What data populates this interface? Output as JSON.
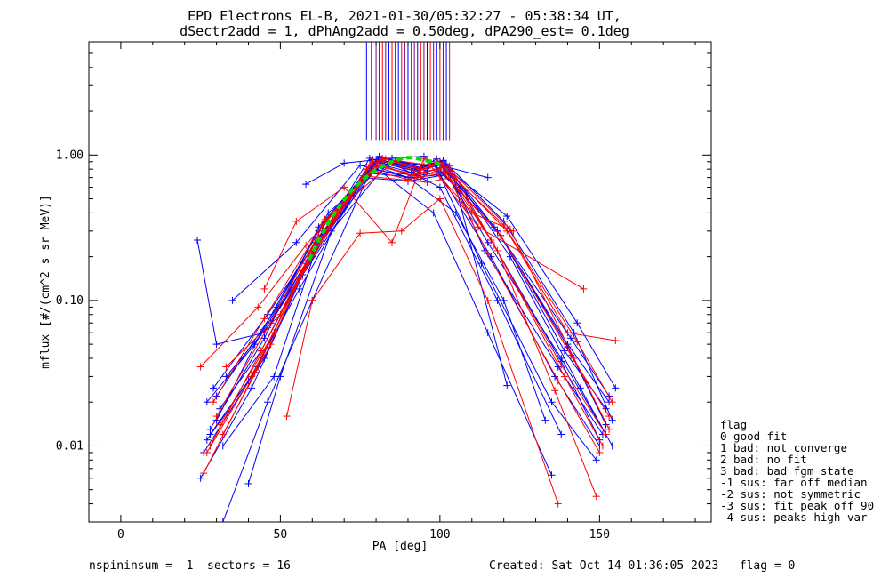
{
  "chart_data": {
    "type": "line",
    "title_line1": "EPD Electrons EL-B, 2021-01-30/05:32:27 - 05:38:34 UT,",
    "title_line2": "dSectr2add = 1, dPhAng2add = 0.50deg, dPA290_est=   0.1deg",
    "xlabel": "PA [deg]",
    "ylabel": "mflux [#/(cm^2 s sr MeV)]",
    "xlim": [
      -10,
      185
    ],
    "ylim": [
      0.003,
      6.0
    ],
    "yscale": "log",
    "x_ticks": [
      0,
      50,
      100,
      150
    ],
    "x_tick_labels": [
      "0",
      "50",
      "100",
      "150"
    ],
    "y_ticks": [
      0.01,
      0.1,
      1.0
    ],
    "y_tick_labels": [
      "0.01",
      "0.10",
      "1.00"
    ],
    "grid": false,
    "legend_position": "right",
    "series": [
      {
        "color": "#0000ff",
        "marker": "+",
        "curves": [
          {
            "x": [
              28,
              45,
              60,
              78,
              92,
              100,
              115,
              138,
              152
            ],
            "y": [
              0.012,
              0.04,
              0.22,
              0.95,
              0.8,
              0.9,
              0.25,
              0.04,
              0.012
            ]
          },
          {
            "x": [
              30,
              44,
              62,
              80,
              95,
              102,
              118,
              140,
              153
            ],
            "y": [
              0.015,
              0.06,
              0.3,
              0.9,
              0.75,
              0.85,
              0.3,
              0.05,
              0.02
            ]
          },
          {
            "x": [
              27,
              42,
              58,
              79,
              90,
              99,
              116,
              136,
              150
            ],
            "y": [
              0.02,
              0.05,
              0.18,
              0.85,
              0.7,
              0.8,
              0.2,
              0.03,
              0.01
            ]
          },
          {
            "x": [
              32,
              48,
              64,
              81,
              94,
              101,
              120,
              142,
              154
            ],
            "y": [
              0.01,
              0.03,
              0.35,
              0.98,
              0.82,
              0.92,
              0.35,
              0.06,
              0.015
            ]
          },
          {
            "x": [
              29,
              46,
              61,
              77,
              93,
              103,
              114,
              137,
              151
            ],
            "y": [
              0.025,
              0.08,
              0.25,
              0.8,
              0.72,
              0.78,
              0.22,
              0.035,
              0.012
            ]
          },
          {
            "x": [
              26,
              43,
              59,
              82,
              96,
              98,
              119,
              139,
              152
            ],
            "y": [
              0.009,
              0.035,
              0.2,
              0.92,
              0.78,
              0.88,
              0.28,
              0.045,
              0.018
            ]
          },
          {
            "x": [
              33,
              47,
              63,
              80,
              91,
              100,
              117,
              141,
              153
            ],
            "y": [
              0.03,
              0.07,
              0.28,
              0.88,
              0.76,
              0.86,
              0.32,
              0.055,
              0.022
            ]
          },
          {
            "x": [
              25,
              41,
              57,
              78,
              92,
              104,
              121,
              143,
              155
            ],
            "y": [
              0.006,
              0.025,
              0.15,
              0.75,
              0.7,
              0.75,
              0.38,
              0.07,
              0.025
            ]
          },
          {
            "x": [
              31,
              44,
              60,
              79,
              94,
              101,
              116,
              138,
              150
            ],
            "y": [
              0.018,
              0.045,
              0.21,
              0.93,
              0.81,
              0.91,
              0.26,
              0.038,
              0.011
            ]
          },
          {
            "x": [
              28,
              45,
              62,
              81,
              95,
              99,
              118,
              140,
              152
            ],
            "y": [
              0.013,
              0.055,
              0.32,
              0.96,
              0.84,
              0.94,
              0.3,
              0.048,
              0.014
            ]
          },
          {
            "x": [
              30,
              49,
              65,
              83,
              93,
              102,
              122,
              144,
              154
            ],
            "y": [
              0.022,
              0.09,
              0.4,
              0.9,
              0.79,
              0.87,
              0.2,
              0.025,
              0.01
            ]
          },
          {
            "x": [
              27,
              40,
              56,
              76,
              90,
              100,
              113,
              135,
              149
            ],
            "y": [
              0.011,
              0.028,
              0.12,
              0.7,
              0.66,
              0.72,
              0.18,
              0.02,
              0.008
            ]
          },
          {
            "x": [
              24,
              30,
              45,
              60,
              80,
              100,
              115
            ],
            "y": [
              0.26,
              0.05,
              0.06,
              0.2,
              0.9,
              0.85,
              0.7
            ]
          },
          {
            "x": [
              35,
              55,
              75,
              90,
              105,
              120,
              133
            ],
            "y": [
              0.1,
              0.25,
              0.85,
              0.7,
              0.4,
              0.1,
              0.015
            ]
          },
          {
            "x": [
              58,
              70,
              85,
              95,
              105,
              121
            ],
            "y": [
              0.63,
              0.88,
              0.95,
              0.98,
              0.6,
              0.026
            ]
          },
          {
            "x": [
              40,
              50,
              66,
              84,
              100,
              118,
              138
            ],
            "y": [
              0.0055,
              0.03,
              0.3,
              0.9,
              0.6,
              0.1,
              0.012
            ]
          },
          {
            "x": [
              32,
              46,
              60,
              79,
              98,
              115,
              135
            ],
            "y": [
              0.003,
              0.02,
              0.1,
              0.85,
              0.4,
              0.06,
              0.0063
            ]
          }
        ]
      },
      {
        "color": "#ff0000",
        "marker": "+",
        "curves": [
          {
            "x": [
              28,
              44,
              59,
              79,
              91,
              101,
              117,
              139,
              151
            ],
            "y": [
              0.01,
              0.045,
              0.2,
              0.9,
              0.72,
              0.82,
              0.24,
              0.03,
              0.01
            ]
          },
          {
            "x": [
              30,
              46,
              61,
              80,
              94,
              100,
              119,
              141,
              153
            ],
            "y": [
              0.016,
              0.065,
              0.26,
              0.85,
              0.7,
              0.8,
              0.28,
              0.042,
              0.016
            ]
          },
          {
            "x": [
              26,
              42,
              57,
              77,
              90,
              102,
              115,
              137,
              150
            ],
            "y": [
              0.0065,
              0.032,
              0.16,
              0.8,
              0.68,
              0.76,
              0.21,
              0.028,
              0.009
            ]
          },
          {
            "x": [
              29,
              45,
              63,
              82,
              95,
              99,
              120,
              143,
              154
            ],
            "y": [
              0.02,
              0.075,
              0.33,
              0.95,
              0.8,
              0.9,
              0.33,
              0.052,
              0.02
            ]
          },
          {
            "x": [
              32,
              47,
              60,
              78,
              92,
              103,
              116,
              138,
              152
            ],
            "y": [
              0.012,
              0.05,
              0.22,
              0.86,
              0.74,
              0.84,
              0.26,
              0.036,
              0.012
            ]
          },
          {
            "x": [
              25,
              43,
              58,
              81,
              93,
              100,
              121,
              140,
              155
            ],
            "y": [
              0.035,
              0.09,
              0.24,
              0.92,
              0.77,
              0.89,
              0.3,
              0.06,
              0.053
            ]
          },
          {
            "x": [
              27,
              41,
              56,
              76,
              96,
              104,
              118,
              136,
              149
            ],
            "y": [
              0.009,
              0.03,
              0.14,
              0.72,
              0.65,
              0.7,
              0.22,
              0.024,
              0.0045
            ]
          },
          {
            "x": [
              31,
              48,
              64,
              83,
              94,
              101,
              122,
              142,
              153
            ],
            "y": [
              0.014,
              0.06,
              0.36,
              0.94,
              0.79,
              0.88,
              0.31,
              0.04,
              0.013
            ]
          },
          {
            "x": [
              52,
              60,
              75,
              88,
              100,
              115,
              137
            ],
            "y": [
              0.016,
              0.1,
              0.29,
              0.3,
              0.5,
              0.1,
              0.004
            ]
          },
          {
            "x": [
              45,
              55,
              70,
              85,
              95,
              110,
              123
            ],
            "y": [
              0.12,
              0.35,
              0.6,
              0.25,
              0.95,
              0.4,
              0.3
            ]
          },
          {
            "x": [
              33,
              50,
              68,
              86,
              97,
              112,
              145
            ],
            "y": [
              0.035,
              0.08,
              0.42,
              0.92,
              0.85,
              0.32,
              0.12
            ]
          }
        ]
      }
    ],
    "fit": {
      "color": "#00dd00",
      "style": "dashed",
      "x": [
        59,
        62,
        65,
        68,
        71,
        74,
        77,
        80,
        83,
        86,
        89,
        92,
        95,
        98,
        100
      ],
      "y": [
        0.19,
        0.26,
        0.34,
        0.43,
        0.53,
        0.62,
        0.71,
        0.79,
        0.86,
        0.92,
        0.96,
        0.96,
        0.92,
        0.9,
        0.86
      ]
    },
    "vertical_bars": [
      77,
      78.5,
      80,
      81,
      82,
      83,
      84,
      85,
      86,
      87,
      88,
      89,
      90,
      91,
      92,
      93,
      94,
      95,
      96,
      97,
      98,
      99,
      100,
      101,
      102,
      103
    ],
    "legend": {
      "title": "flag",
      "entries": [
        " 0 good fit",
        " 1 bad: not converge",
        " 2 bad: no fit",
        " 3 bad: bad fgm state",
        "-1 sus: far off median",
        "-2 sus: not symmetric",
        "-3 sus: fit peak off 90",
        "-4 sus: peaks high var"
      ]
    },
    "footer_left": "nspininsum =  1  sectors = 16",
    "footer_right": "Created: Sat Oct 14 01:36:05 2023   flag = 0"
  }
}
